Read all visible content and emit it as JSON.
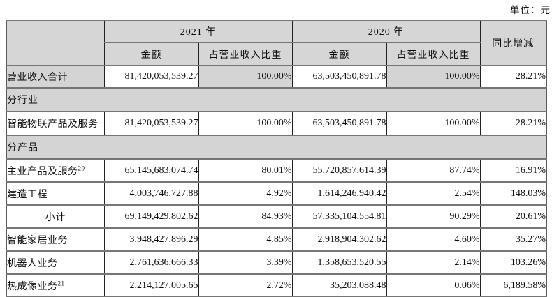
{
  "unit_label": "单位：元",
  "colors": {
    "shaded_bg": "#d4d4d4",
    "header_bg": "#d6d6d6",
    "border_vertical": "#222222",
    "border_horizontal": "#757575",
    "text": "#0e0e0e",
    "page_bg": "#ffffff"
  },
  "table": {
    "headers": {
      "year_2021": "2021 年",
      "year_2020": "2020 年",
      "amount": "金额",
      "ratio": "占营业收入比重",
      "yoy": "同比增减"
    },
    "rows": [
      {
        "kind": "data",
        "highlight": true,
        "label": "营业收入合计",
        "sup": "",
        "center": false,
        "values": [
          "81,420,053,539.27",
          "100.00%",
          "63,503,450,891.78",
          "100.00%",
          "28.21%"
        ]
      },
      {
        "kind": "section",
        "label": "分行业"
      },
      {
        "kind": "data",
        "highlight": false,
        "label": "智能物联产品及服务",
        "sup": "",
        "center": false,
        "values": [
          "81,420,053,539.27",
          "100.00%",
          "63,503,450,891.78",
          "100.00%",
          "28.21%"
        ]
      },
      {
        "kind": "section",
        "label": "分产品"
      },
      {
        "kind": "data",
        "highlight": false,
        "label": "主业产品及服务",
        "sup": "20",
        "center": false,
        "values": [
          "65,145,683,074.74",
          "80.01%",
          "55,720,857,614.39",
          "87.74%",
          "16.91%"
        ]
      },
      {
        "kind": "data",
        "highlight": false,
        "label": "建造工程",
        "sup": "",
        "center": false,
        "values": [
          "4,003,746,727.88",
          "4.92%",
          "1,614,246,940.42",
          "2.54%",
          "148.03%"
        ]
      },
      {
        "kind": "data",
        "highlight": false,
        "label": "小计",
        "sup": "",
        "center": true,
        "values": [
          "69,149,429,802.62",
          "84.93%",
          "57,335,104,554.81",
          "90.29%",
          "20.61%"
        ]
      },
      {
        "kind": "data",
        "highlight": false,
        "label": "智能家居业务",
        "sup": "",
        "center": false,
        "values": [
          "3,948,427,896.29",
          "4.85%",
          "2,918,904,302.62",
          "4.60%",
          "35.27%"
        ]
      },
      {
        "kind": "data",
        "highlight": false,
        "label": "机器人业务",
        "sup": "",
        "center": false,
        "values": [
          "2,761,636,666.33",
          "3.39%",
          "1,358,653,520.55",
          "2.14%",
          "103.26%"
        ]
      },
      {
        "kind": "data",
        "highlight": false,
        "label": "热成像业务",
        "sup": "21",
        "center": false,
        "values": [
          "2,214,127,005.65",
          "2.72%",
          "35,203,088.48",
          "0.06%",
          "6,189.58%"
        ]
      }
    ]
  }
}
